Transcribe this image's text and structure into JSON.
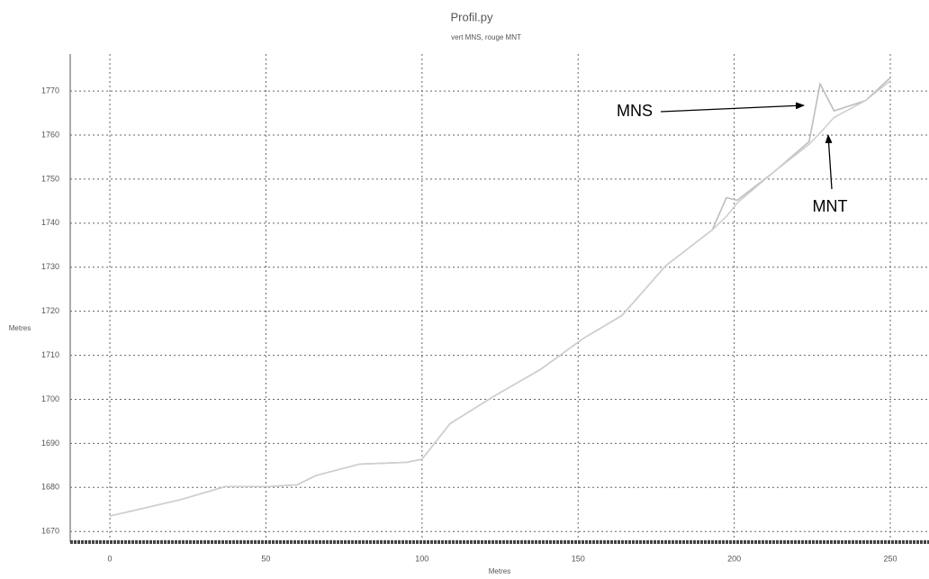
{
  "chart_data": {
    "type": "line",
    "title": "Profil.py",
    "subtitle": "vert MNS, rouge MNT",
    "x_label": "Metres",
    "y_label": "Metres",
    "x": [
      0,
      22.5,
      37,
      51,
      60,
      66,
      80,
      95,
      100,
      109,
      123,
      138,
      152,
      164,
      178,
      193,
      197.5,
      201,
      213,
      224,
      227.5,
      232,
      242,
      250
    ],
    "series": [
      {
        "name": "MNS",
        "color": "#bdbdbd",
        "values": [
          1673.5,
          1677.2,
          1680.2,
          1680.2,
          1680.6,
          1682.7,
          1685.3,
          1685.7,
          1686.4,
          1694.5,
          1700.7,
          1706.8,
          1714,
          1719,
          1730.3,
          1738.5,
          1745.8,
          1745.2,
          1751.8,
          1758.5,
          1771.6,
          1765.5,
          1767.8,
          1773
        ]
      },
      {
        "name": "MNT",
        "color": "#cfcfcf",
        "values": [
          1673.5,
          1677.2,
          1680.2,
          1680.2,
          1680.6,
          1682.7,
          1685.3,
          1685.7,
          1686.4,
          1694.5,
          1700.7,
          1706.8,
          1714,
          1719,
          1730.3,
          1738.5,
          1741.5,
          1744.6,
          1751.8,
          1757.9,
          1760.5,
          1764,
          1767.8,
          1772.3
        ]
      }
    ],
    "xlim": [
      -12.7,
      262.4
    ],
    "ylim": [
      1668,
      1778.4
    ],
    "xticks": [
      0,
      50,
      100,
      150,
      200,
      250
    ],
    "yticks": [
      1670,
      1680,
      1690,
      1700,
      1710,
      1720,
      1730,
      1740,
      1750,
      1760,
      1770
    ],
    "grid": true
  }
}
